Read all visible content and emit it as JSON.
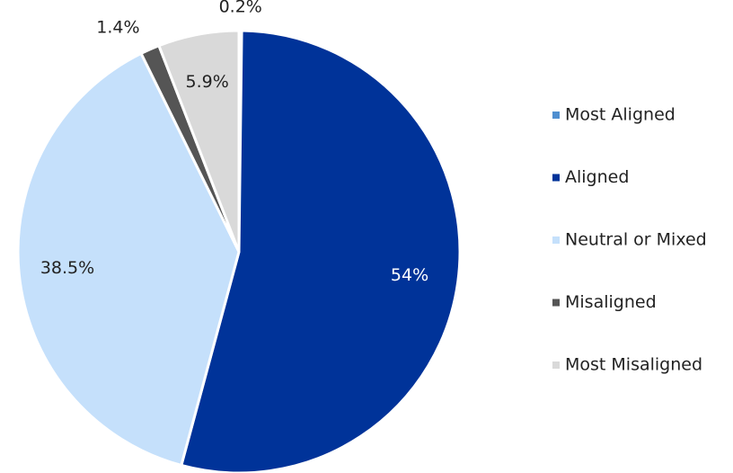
{
  "chart_data": {
    "type": "pie",
    "categories": [
      "Most Aligned",
      "Aligned",
      "Neutral or Mixed",
      "Misaligned",
      "Most Misaligned"
    ],
    "values": [
      0.2,
      54,
      38.5,
      1.4,
      5.9
    ],
    "value_labels": [
      "0.2%",
      "54%",
      "38.5%",
      "1.4%",
      "5.9%"
    ],
    "colors": [
      "#4f8fd0",
      "#003399",
      "#c5e0fb",
      "#555555",
      "#d9d9d9"
    ],
    "label_colors": [
      "#222222",
      "#ffffff",
      "#222222",
      "#222222",
      "#222222"
    ],
    "legend": "right"
  }
}
